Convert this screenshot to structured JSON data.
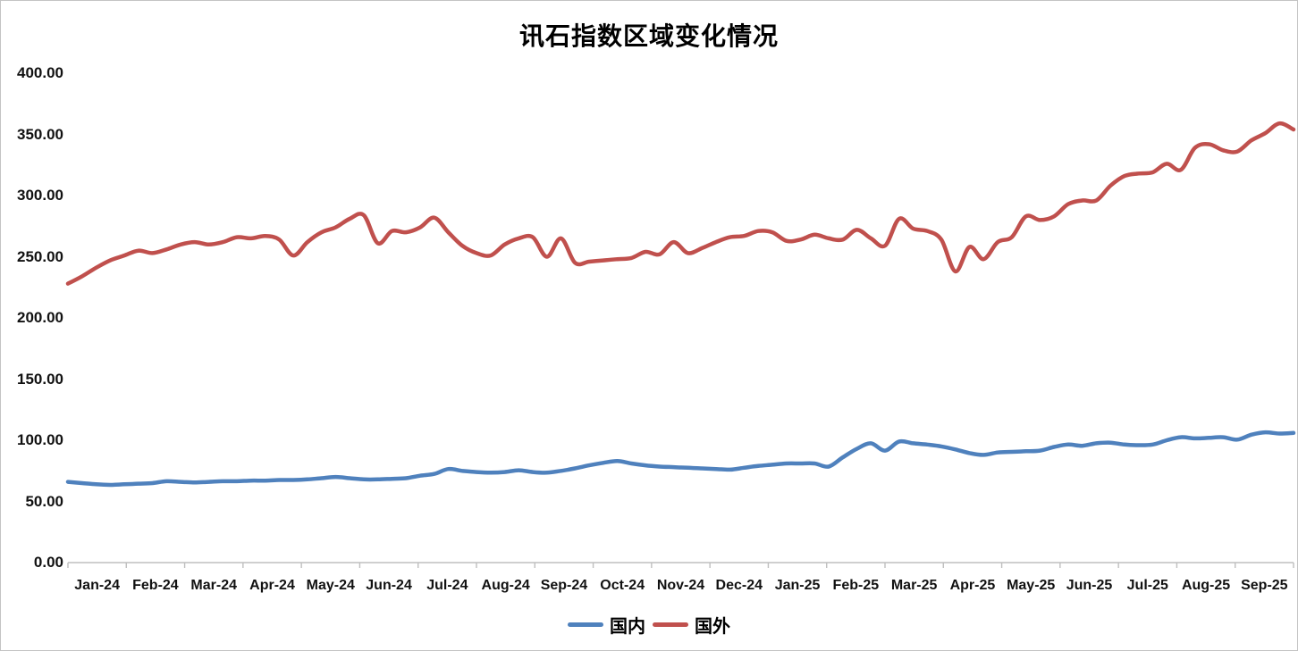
{
  "chart_data": {
    "type": "line",
    "title": "讯石指数区域变化情况",
    "x_period": "weekly points, monthly tick labels",
    "x_labels": [
      "Jan-24",
      "Feb-24",
      "Mar-24",
      "Apr-24",
      "May-24",
      "Jun-24",
      "Jul-24",
      "Aug-24",
      "Sep-24",
      "Oct-24",
      "Nov-24",
      "Dec-24",
      "Jan-25",
      "Feb-25",
      "Mar-25",
      "Apr-25",
      "May-25",
      "Jun-25",
      "Jul-25",
      "Aug-25",
      "Sep-25"
    ],
    "y_tick_labels": [
      "0.00",
      "50.00",
      "100.00",
      "150.00",
      "200.00",
      "250.00",
      "300.00",
      "350.00",
      "400.00"
    ],
    "ylim": [
      0,
      400
    ],
    "grid": false,
    "legend_position": "bottom",
    "series": [
      {
        "name": "国内",
        "color": "#4F81BD",
        "values": [
          66,
          65,
          64,
          63.5,
          64,
          64.5,
          65,
          66.5,
          66,
          65.5,
          66,
          66.5,
          66.5,
          67,
          67,
          67.5,
          67.5,
          68,
          69,
          70,
          69,
          68,
          68,
          68.5,
          69,
          71,
          72.5,
          76.5,
          75,
          74,
          73.5,
          74,
          75.5,
          74,
          73.5,
          75,
          77,
          79.5,
          81.5,
          83,
          81,
          79.5,
          78.5,
          78,
          77.5,
          77,
          76.5,
          76,
          77.5,
          79,
          80,
          81,
          81,
          81,
          78.5,
          86,
          93,
          97.5,
          91.5,
          99,
          97.5,
          96.5,
          95,
          92.5,
          89.5,
          88,
          90,
          90.5,
          91,
          91.5,
          94.5,
          96.5,
          95.5,
          97.5,
          98,
          96.5,
          96,
          96.5,
          100,
          102.5,
          101.5,
          102,
          102.5,
          100.5,
          104.5,
          106.5,
          105.5,
          106
        ]
      },
      {
        "name": "国外",
        "color": "#C0504D",
        "values": [
          228,
          234,
          241,
          247,
          251,
          255,
          253,
          256,
          260,
          262,
          260,
          262,
          266,
          265,
          267,
          264,
          251,
          262,
          270,
          274,
          281,
          284,
          261,
          271,
          270,
          274,
          282,
          270,
          259,
          253,
          251,
          260,
          265,
          266,
          250,
          265,
          245,
          246,
          247,
          248,
          249,
          254,
          252,
          262,
          253,
          257,
          262,
          266,
          267,
          271,
          270,
          263,
          264,
          268,
          265,
          264,
          272,
          265,
          259,
          281,
          273,
          271,
          264,
          238,
          258,
          248,
          262,
          266,
          283,
          280,
          283,
          293,
          296,
          296,
          308,
          316,
          318,
          319,
          326,
          321,
          339,
          342,
          337,
          336,
          345,
          351,
          359,
          354
        ]
      }
    ]
  },
  "colors": {
    "axis": "#BFBFBF",
    "text": "#111111",
    "frame_border": "#C3C3C3"
  }
}
